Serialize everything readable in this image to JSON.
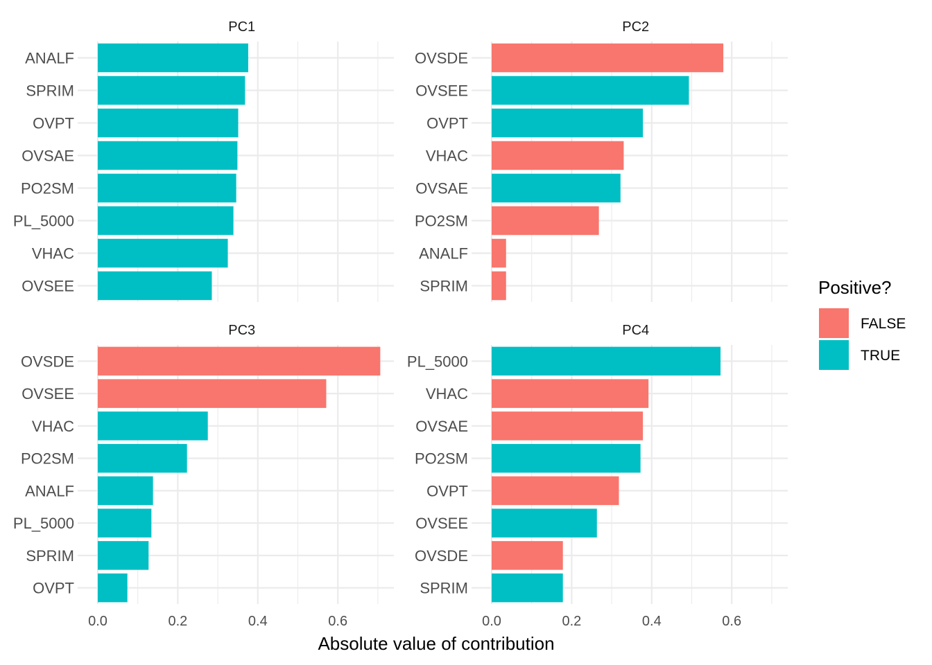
{
  "chart_data": {
    "type": "bar",
    "orientation": "horizontal",
    "xlabel": "Absolute value of contribution",
    "xlim": [
      0,
      0.72
    ],
    "x_ticks": [
      0.0,
      0.2,
      0.4,
      0.6
    ],
    "x_tick_labels": [
      "0.0",
      "0.2",
      "0.4",
      "0.6"
    ],
    "legend": {
      "title": "Positive?",
      "placement": "right",
      "entries": [
        {
          "label": "FALSE",
          "color": "#F8766D"
        },
        {
          "label": "TRUE",
          "color": "#00BFC4"
        }
      ]
    },
    "panels": [
      {
        "title": "PC1",
        "categories": [
          "ANALF",
          "SPRIM",
          "OVPT",
          "OVSAE",
          "PO2SM",
          "PL_5000",
          "VHAC",
          "OVSEE"
        ],
        "values": [
          0.376,
          0.368,
          0.351,
          0.349,
          0.346,
          0.339,
          0.325,
          0.285
        ],
        "positive": [
          true,
          true,
          true,
          true,
          true,
          true,
          true,
          true
        ]
      },
      {
        "title": "PC2",
        "categories": [
          "OVSDE",
          "OVSEE",
          "OVPT",
          "VHAC",
          "OVSAE",
          "PO2SM",
          "ANALF",
          "SPRIM"
        ],
        "values": [
          0.579,
          0.493,
          0.378,
          0.33,
          0.322,
          0.268,
          0.036,
          0.036
        ],
        "positive": [
          false,
          true,
          true,
          false,
          true,
          false,
          false,
          false
        ]
      },
      {
        "title": "PC3",
        "categories": [
          "OVSDE",
          "OVSEE",
          "VHAC",
          "PO2SM",
          "ANALF",
          "PL_5000",
          "SPRIM",
          "OVPT"
        ],
        "values": [
          0.706,
          0.571,
          0.275,
          0.223,
          0.138,
          0.134,
          0.127,
          0.074
        ],
        "positive": [
          false,
          false,
          true,
          true,
          true,
          true,
          true,
          true
        ]
      },
      {
        "title": "PC4",
        "categories": [
          "PL_5000",
          "VHAC",
          "OVSAE",
          "PO2SM",
          "OVPT",
          "OVSEE",
          "OVSDE",
          "SPRIM"
        ],
        "values": [
          0.572,
          0.392,
          0.378,
          0.372,
          0.318,
          0.263,
          0.178,
          0.178
        ],
        "positive": [
          true,
          false,
          false,
          true,
          false,
          true,
          false,
          true
        ]
      }
    ]
  }
}
